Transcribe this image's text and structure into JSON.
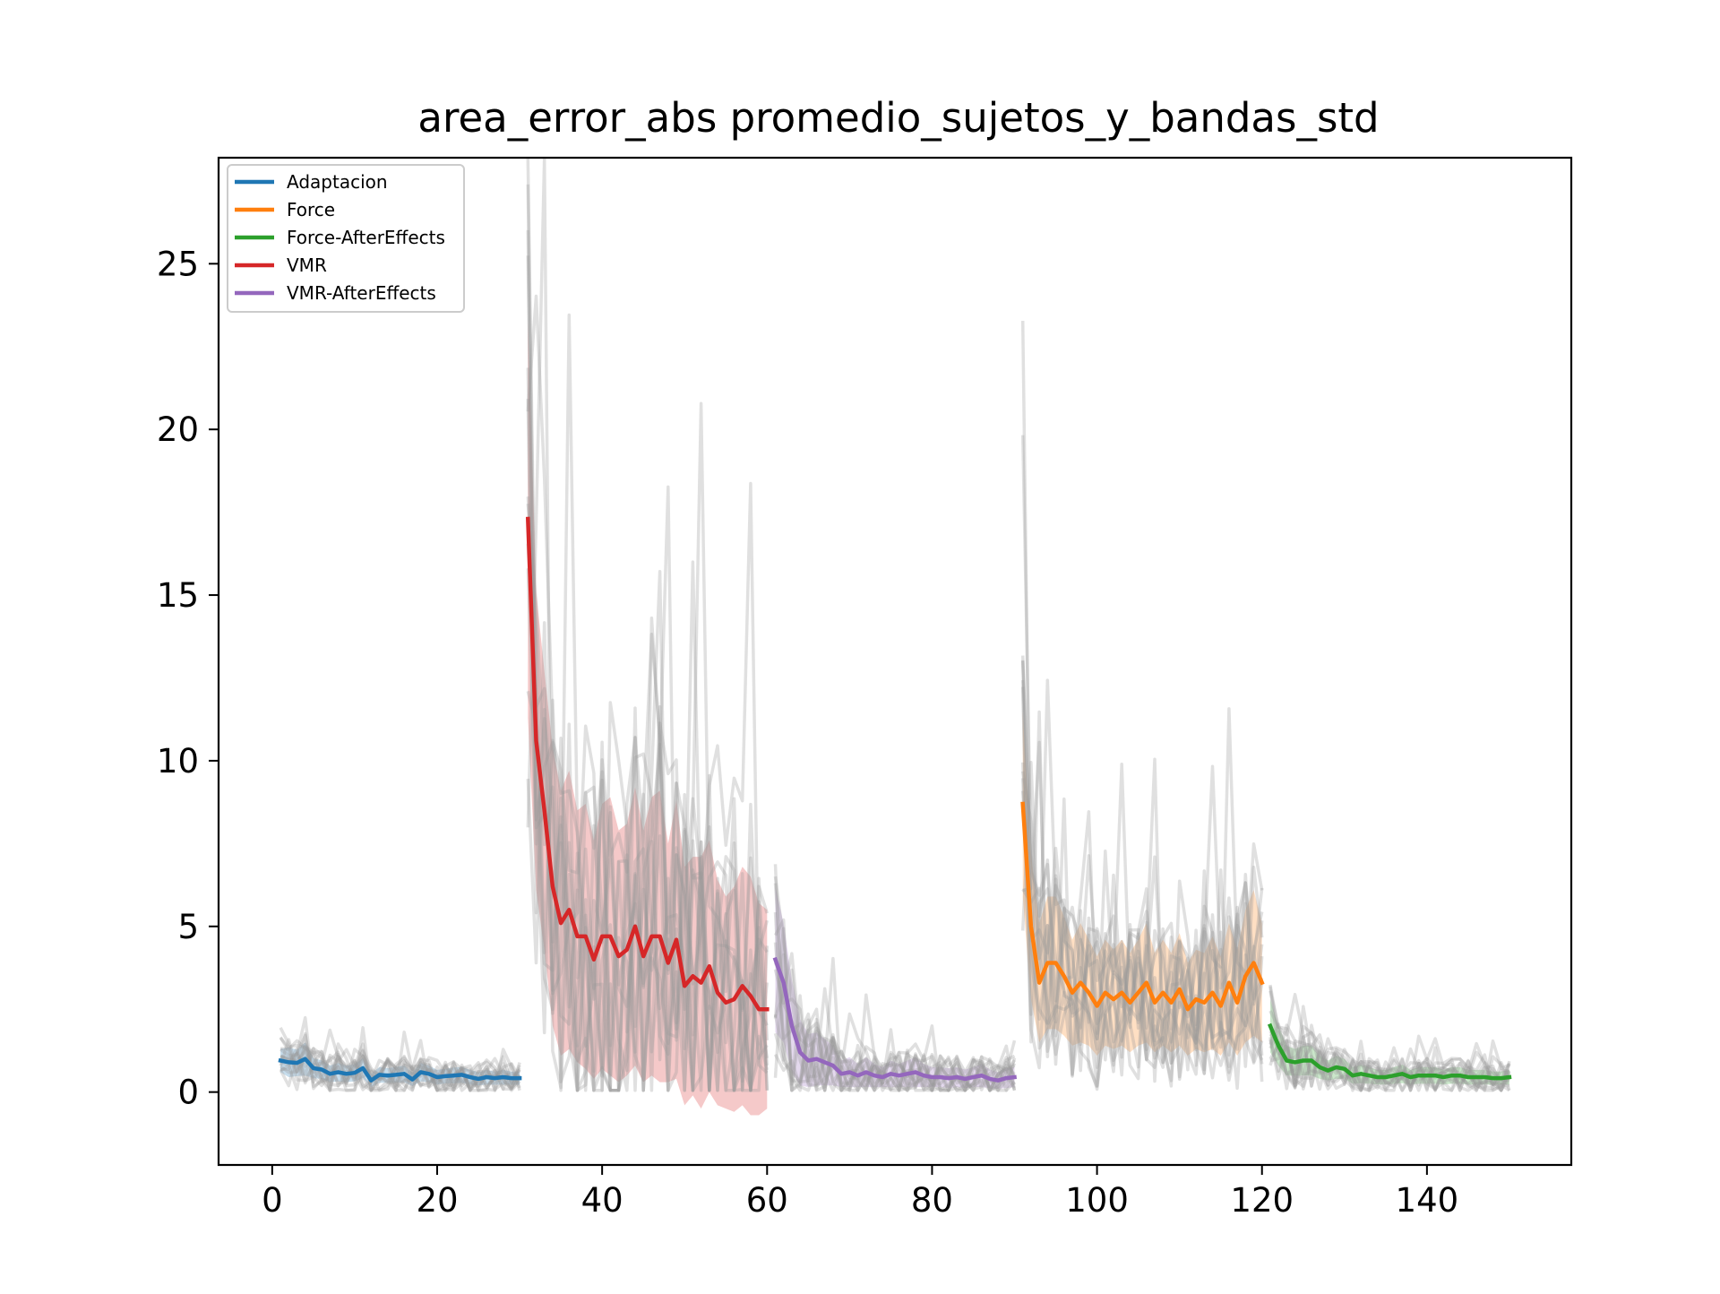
{
  "chart_data": {
    "type": "line",
    "title": "area_error_abs promedio_sujetos_y_bandas_std",
    "xlabel": "",
    "ylabel": "",
    "xlim": [
      -6.5,
      157.5
    ],
    "ylim": [
      -2.2,
      28.2
    ],
    "xticks": [
      0,
      20,
      40,
      60,
      80,
      100,
      120,
      140
    ],
    "yticks": [
      0,
      5,
      10,
      15,
      20,
      25
    ],
    "grid": false,
    "legend_position": "top-left",
    "legend": [
      "Adaptacion",
      "Force",
      "Force-AfterEffects",
      "VMR",
      "VMR-AfterEffects"
    ],
    "background_traces_note_color": "#999999",
    "series": [
      {
        "name": "Adaptacion",
        "color": "#1f77b4",
        "x": [
          1,
          2,
          3,
          4,
          5,
          6,
          7,
          8,
          9,
          10,
          11,
          12,
          13,
          14,
          15,
          16,
          17,
          18,
          19,
          20,
          21,
          22,
          23,
          24,
          25,
          26,
          27,
          28,
          29,
          30
        ],
        "values": [
          0.95,
          0.9,
          0.88,
          1.0,
          0.72,
          0.68,
          0.55,
          0.6,
          0.55,
          0.58,
          0.72,
          0.35,
          0.52,
          0.5,
          0.52,
          0.55,
          0.38,
          0.6,
          0.55,
          0.45,
          0.48,
          0.5,
          0.52,
          0.45,
          0.4,
          0.45,
          0.42,
          0.45,
          0.42,
          0.42
        ],
        "std": [
          0.35,
          0.45,
          0.4,
          0.5,
          0.3,
          0.28,
          0.25,
          0.28,
          0.25,
          0.26,
          0.3,
          0.2,
          0.24,
          0.22,
          0.24,
          0.25,
          0.2,
          0.28,
          0.25,
          0.22,
          0.22,
          0.24,
          0.24,
          0.22,
          0.2,
          0.22,
          0.2,
          0.22,
          0.2,
          0.2
        ]
      },
      {
        "name": "VMR",
        "color": "#d62728",
        "x": [
          31,
          32,
          33,
          34,
          35,
          36,
          37,
          38,
          39,
          40,
          41,
          42,
          43,
          44,
          45,
          46,
          47,
          48,
          49,
          50,
          51,
          52,
          53,
          54,
          55,
          56,
          57,
          58,
          59,
          60
        ],
        "values": [
          17.3,
          10.6,
          8.5,
          6.2,
          5.1,
          5.5,
          4.7,
          4.7,
          4.0,
          4.7,
          4.7,
          4.1,
          4.3,
          5.0,
          4.1,
          4.7,
          4.7,
          3.9,
          4.6,
          3.2,
          3.5,
          3.3,
          3.8,
          3.0,
          2.7,
          2.8,
          3.2,
          2.9,
          2.5,
          2.5
        ],
        "std": [
          6.0,
          4.5,
          4.2,
          4.2,
          4.0,
          4.2,
          3.8,
          4.0,
          3.6,
          4.0,
          4.2,
          3.8,
          3.8,
          4.2,
          3.8,
          4.2,
          4.4,
          3.6,
          4.2,
          3.6,
          3.6,
          3.8,
          3.8,
          3.4,
          3.2,
          3.4,
          3.6,
          3.6,
          3.2,
          3.0
        ]
      },
      {
        "name": "VMR-AfterEffects",
        "color": "#9467bd",
        "x": [
          61,
          62,
          63,
          64,
          65,
          66,
          67,
          68,
          69,
          70,
          71,
          72,
          73,
          74,
          75,
          76,
          77,
          78,
          79,
          80,
          81,
          82,
          83,
          84,
          85,
          86,
          87,
          88,
          89,
          90
        ],
        "values": [
          4.0,
          3.3,
          2.0,
          1.2,
          0.95,
          1.0,
          0.9,
          0.8,
          0.55,
          0.6,
          0.5,
          0.6,
          0.5,
          0.45,
          0.55,
          0.5,
          0.55,
          0.6,
          0.5,
          0.45,
          0.45,
          0.42,
          0.45,
          0.4,
          0.45,
          0.5,
          0.4,
          0.35,
          0.42,
          0.45
        ],
        "std": [
          2.2,
          1.8,
          1.4,
          1.0,
          0.8,
          0.8,
          0.7,
          0.6,
          0.4,
          0.45,
          0.35,
          0.45,
          0.35,
          0.3,
          0.4,
          0.35,
          0.4,
          0.45,
          0.35,
          0.3,
          0.3,
          0.3,
          0.3,
          0.28,
          0.3,
          0.35,
          0.28,
          0.25,
          0.3,
          0.3
        ]
      },
      {
        "name": "Force",
        "color": "#ff7f0e",
        "x": [
          91,
          92,
          93,
          94,
          95,
          96,
          97,
          98,
          99,
          100,
          101,
          102,
          103,
          104,
          105,
          106,
          107,
          108,
          109,
          110,
          111,
          112,
          113,
          114,
          115,
          116,
          117,
          118,
          119,
          120
        ],
        "values": [
          8.7,
          5.0,
          3.3,
          3.9,
          3.9,
          3.5,
          3.0,
          3.3,
          3.0,
          2.6,
          3.0,
          2.8,
          3.0,
          2.7,
          3.0,
          3.3,
          2.7,
          3.0,
          2.7,
          3.1,
          2.5,
          2.8,
          2.7,
          3.0,
          2.6,
          3.3,
          2.7,
          3.5,
          3.9,
          3.3
        ],
        "std": [
          2.8,
          2.2,
          1.8,
          2.0,
          2.0,
          1.8,
          1.6,
          1.8,
          1.6,
          1.5,
          1.6,
          1.5,
          1.6,
          1.5,
          1.6,
          1.8,
          1.5,
          1.6,
          1.5,
          1.7,
          1.4,
          1.5,
          1.5,
          1.7,
          1.5,
          1.8,
          1.6,
          2.0,
          2.2,
          1.8
        ]
      },
      {
        "name": "Force-AfterEffects",
        "color": "#2ca02c",
        "x": [
          121,
          122,
          123,
          124,
          125,
          126,
          127,
          128,
          129,
          130,
          131,
          132,
          133,
          134,
          135,
          136,
          137,
          138,
          139,
          140,
          141,
          142,
          143,
          144,
          145,
          146,
          147,
          148,
          149,
          150
        ],
        "values": [
          2.0,
          1.4,
          0.95,
          0.9,
          0.95,
          0.95,
          0.75,
          0.65,
          0.75,
          0.7,
          0.5,
          0.55,
          0.5,
          0.45,
          0.45,
          0.5,
          0.55,
          0.45,
          0.5,
          0.5,
          0.5,
          0.45,
          0.5,
          0.5,
          0.45,
          0.45,
          0.45,
          0.42,
          0.42,
          0.45
        ],
        "std": [
          0.8,
          0.6,
          0.45,
          0.4,
          0.45,
          0.45,
          0.35,
          0.3,
          0.35,
          0.3,
          0.25,
          0.28,
          0.25,
          0.22,
          0.22,
          0.25,
          0.28,
          0.22,
          0.25,
          0.25,
          0.25,
          0.22,
          0.25,
          0.25,
          0.22,
          0.22,
          0.22,
          0.2,
          0.2,
          0.22
        ]
      }
    ]
  }
}
